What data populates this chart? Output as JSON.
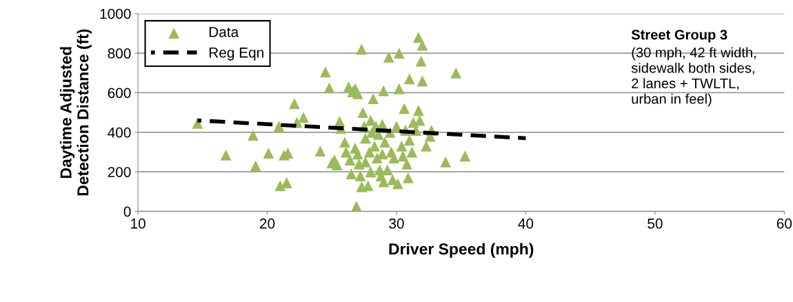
{
  "chart_data": {
    "type": "scatter",
    "xlabel": "Driver Speed (mph)",
    "ylabel": "Daytime Adjusted\nDetection Distance (ft)",
    "xlim": [
      10,
      60
    ],
    "xticks": [
      10,
      20,
      30,
      40,
      50,
      60
    ],
    "ylim": [
      0,
      1000
    ],
    "yticks": [
      0,
      200,
      400,
      600,
      800,
      1000
    ],
    "grid": "y",
    "legend": "top left",
    "annotations": [
      "Street Group 3",
      "(30 mph, 42 ft width,\nsidewalk both sides,\n2 lanes + TWLTL,\nurban in feel)"
    ],
    "series": [
      {
        "name": "Data",
        "color": "#9bbb59",
        "marker": "triangle",
        "x": [
          14.6,
          16.8,
          18.9,
          19.1,
          20.1,
          20.9,
          21.0,
          21.3,
          21.5,
          21.6,
          22.1,
          22.3,
          22.8,
          24.1,
          24.5,
          24.8,
          25.0,
          25.2,
          25.4,
          25.6,
          25.7,
          26.0,
          26.1,
          26.3,
          26.4,
          26.5,
          26.6,
          26.8,
          26.8,
          26.9,
          27.0,
          27.0,
          27.1,
          27.2,
          27.3,
          27.3,
          27.4,
          27.5,
          27.6,
          27.6,
          27.8,
          27.9,
          28.0,
          28.0,
          28.1,
          28.2,
          28.3,
          28.4,
          28.5,
          28.6,
          28.7,
          28.8,
          28.9,
          28.9,
          29.0,
          29.0,
          29.1,
          29.3,
          29.4,
          29.5,
          29.6,
          29.7,
          29.8,
          30.0,
          30.1,
          30.2,
          30.2,
          30.4,
          30.5,
          30.6,
          30.7,
          30.8,
          30.9,
          31.0,
          31.0,
          31.2,
          31.3,
          31.5,
          31.7,
          31.7,
          31.8,
          31.9,
          32.0,
          32.0,
          32.3,
          32.6,
          32.7,
          33.8,
          34.6,
          35.3
        ],
        "values": [
          445,
          285,
          385,
          230,
          295,
          430,
          130,
          285,
          145,
          295,
          545,
          450,
          475,
          305,
          705,
          625,
          245,
          260,
          235,
          455,
          420,
          350,
          300,
          630,
          260,
          190,
          605,
          620,
          320,
          25,
          595,
          290,
          240,
          180,
          125,
          820,
          500,
          430,
          370,
          250,
          130,
          300,
          460,
          200,
          400,
          570,
          330,
          430,
          270,
          390,
          210,
          180,
          440,
          290,
          610,
          150,
          350,
          210,
          780,
          400,
          300,
          160,
          270,
          430,
          140,
          620,
          800,
          330,
          280,
          520,
          410,
          240,
          170,
          360,
          670,
          300,
          450,
          410,
          880,
          510,
          460,
          760,
          840,
          660,
          330,
          380,
          410,
          250,
          700,
          280
        ]
      },
      {
        "name": "Reg Eqn",
        "type": "line",
        "color": "#000000",
        "line_style": "dashed",
        "marker": "none",
        "x": [
          14.6,
          40
        ],
        "values": [
          460,
          370
        ]
      }
    ]
  }
}
